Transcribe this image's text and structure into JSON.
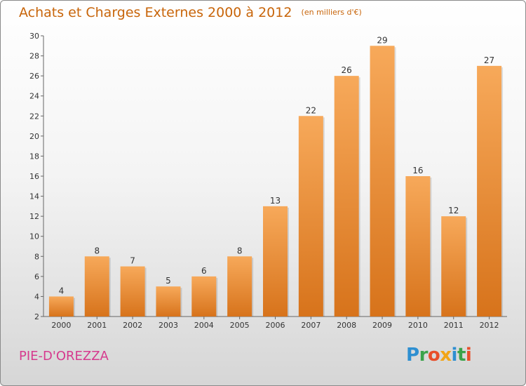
{
  "header": {
    "title": "Achats et Charges Externes 2000 à 2012",
    "unit": "(en milliers d'€)"
  },
  "footer": {
    "commune": "PIE-D'OREZZA",
    "logo_text": "Proxiti"
  },
  "colors": {
    "title": "#c8650a",
    "commune": "#d63a8e",
    "bar_top": "#f7a95a",
    "bar_bottom": "#d7731b",
    "logo_letters": [
      "#2e8fd1",
      "#3aa34a",
      "#e84e2a",
      "#f2a516",
      "#2e8fd1",
      "#3aa34a",
      "#e84e2a"
    ]
  },
  "chart_data": {
    "type": "bar",
    "title": "Achats et Charges Externes 2000 à 2012",
    "subtitle": "(en milliers d'€)",
    "xlabel": "",
    "ylabel": "",
    "categories": [
      "2000",
      "2001",
      "2002",
      "2003",
      "2004",
      "2005",
      "2006",
      "2007",
      "2008",
      "2009",
      "2010",
      "2011",
      "2012"
    ],
    "values": [
      4,
      8,
      7,
      5,
      6,
      8,
      13,
      22,
      26,
      29,
      16,
      12,
      27
    ],
    "ylim": [
      2,
      30
    ],
    "yticks": [
      2,
      4,
      6,
      8,
      10,
      12,
      14,
      16,
      18,
      20,
      22,
      24,
      26,
      28,
      30
    ],
    "grid": false,
    "legend": "none",
    "data_labels": true
  }
}
